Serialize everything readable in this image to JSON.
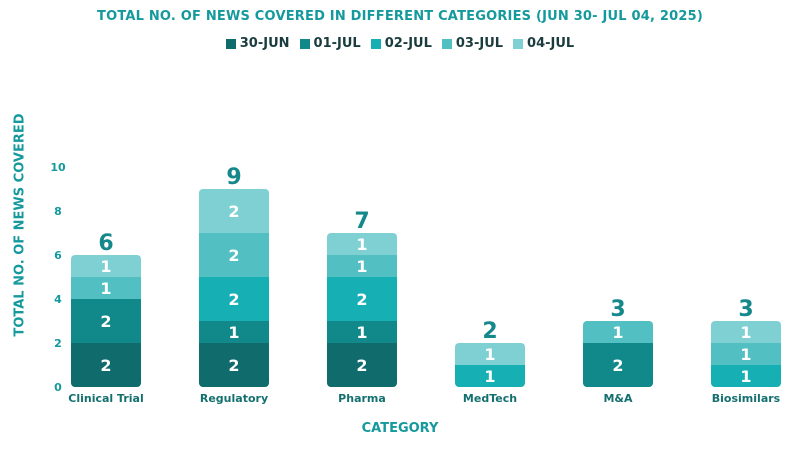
{
  "chart_data": {
    "type": "bar",
    "stacked": true,
    "title": "TOTAL NO. OF NEWS COVERED IN DIFFERENT CATEGORIES (JUN 30- JUL 04, 2025)",
    "xlabel": "CATEGORY",
    "ylabel": "TOTAL  NO. OF NEWS COVERED",
    "ylim": [
      0,
      10
    ],
    "yticks": [
      0,
      2,
      4,
      6,
      8,
      10
    ],
    "legend_position": "top",
    "categories": [
      "Clinical Trial",
      "Regulatory",
      "Pharma",
      "MedTech",
      "M&A",
      "Biosimilars"
    ],
    "series": [
      {
        "name": "30-JUN",
        "color": "#0f6b6c",
        "values": [
          2,
          2,
          2,
          0,
          0,
          0
        ]
      },
      {
        "name": "01-JUL",
        "color": "#11898a",
        "values": [
          2,
          1,
          1,
          0,
          2,
          0
        ]
      },
      {
        "name": "02-JUL",
        "color": "#16b0b4",
        "values": [
          0,
          2,
          2,
          1,
          0,
          1
        ]
      },
      {
        "name": "03-JUL",
        "color": "#52bfc2",
        "values": [
          1,
          2,
          1,
          0,
          1,
          1
        ]
      },
      {
        "name": "04-JUL",
        "color": "#7fd0d3",
        "values": [
          1,
          2,
          1,
          1,
          0,
          1
        ]
      }
    ],
    "totals": [
      6,
      9,
      7,
      2,
      3,
      3
    ]
  }
}
